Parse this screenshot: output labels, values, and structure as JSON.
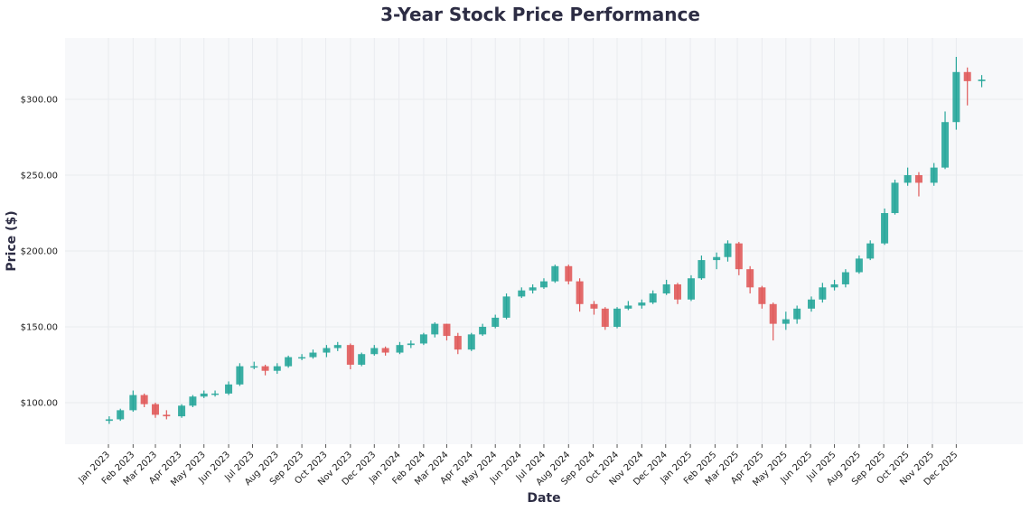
{
  "chart_data": {
    "type": "candlestick",
    "title": "3-Year Stock Price Performance",
    "xlabel": "Date",
    "ylabel": "Price ($)",
    "ylim": [
      72.6,
      340.5
    ],
    "yticks": [
      "$100.00",
      "$150.00",
      "$200.00",
      "$250.00",
      "$300.00"
    ],
    "ytick_values": [
      100,
      150,
      200,
      250,
      300
    ],
    "xticks": [
      "Jan 2023",
      "Feb 2023",
      "Mar 2023",
      "Apr 2023",
      "May 2023",
      "Jun 2023",
      "Jul 2023",
      "Aug 2023",
      "Sep 2023",
      "Oct 2023",
      "Nov 2023",
      "Dec 2023",
      "Jan 2024",
      "Feb 2024",
      "Mar 2024",
      "Apr 2024",
      "May 2024",
      "Jun 2024",
      "Jul 2024",
      "Aug 2024",
      "Sep 2024",
      "Oct 2024",
      "Nov 2024",
      "Dec 2024",
      "Jan 2025",
      "Feb 2025",
      "Mar 2025",
      "Apr 2025",
      "May 2025",
      "Jun 2025",
      "Jul 2025",
      "Aug 2025",
      "Sep 2025",
      "Oct 2025",
      "Nov 2025",
      "Dec 2025"
    ],
    "grid": true,
    "colors": {
      "up": "#26a69a",
      "down": "#e05a5a",
      "background": "#f7f8fa",
      "grid": "#e9ebef"
    },
    "columns": [
      "date",
      "open",
      "high",
      "low",
      "close"
    ],
    "ohlc": [
      [
        "2023-01-02",
        88,
        91,
        86,
        89
      ],
      [
        "2023-01-16",
        89,
        96,
        88,
        95
      ],
      [
        "2023-02-01",
        95,
        108,
        94,
        105
      ],
      [
        "2023-02-15",
        105,
        106,
        97,
        99
      ],
      [
        "2023-03-01",
        99,
        100,
        90,
        92
      ],
      [
        "2023-03-15",
        92,
        95,
        89,
        91
      ],
      [
        "2023-04-03",
        91,
        99,
        90,
        98
      ],
      [
        "2023-04-17",
        98,
        105,
        97,
        104
      ],
      [
        "2023-05-01",
        104,
        108,
        103,
        106
      ],
      [
        "2023-05-15",
        106,
        108,
        104,
        106
      ],
      [
        "2023-06-01",
        106,
        114,
        105,
        112
      ],
      [
        "2023-06-15",
        112,
        126,
        111,
        124
      ],
      [
        "2023-07-03",
        124,
        127,
        122,
        124
      ],
      [
        "2023-07-17",
        124,
        125,
        118,
        121
      ],
      [
        "2023-08-01",
        121,
        126,
        119,
        124
      ],
      [
        "2023-08-15",
        124,
        131,
        123,
        130
      ],
      [
        "2023-09-01",
        130,
        132,
        128,
        130
      ],
      [
        "2023-09-15",
        130,
        135,
        129,
        133
      ],
      [
        "2023-10-02",
        133,
        138,
        130,
        136
      ],
      [
        "2023-10-16",
        136,
        140,
        134,
        138
      ],
      [
        "2023-11-01",
        138,
        139,
        122,
        125
      ],
      [
        "2023-11-15",
        125,
        133,
        124,
        132
      ],
      [
        "2023-12-01",
        132,
        138,
        131,
        136
      ],
      [
        "2023-12-15",
        136,
        137,
        131,
        133
      ],
      [
        "2024-01-02",
        133,
        140,
        132,
        138
      ],
      [
        "2024-01-16",
        138,
        141,
        136,
        139
      ],
      [
        "2024-02-01",
        139,
        146,
        138,
        145
      ],
      [
        "2024-02-15",
        145,
        153,
        143,
        152
      ],
      [
        "2024-03-01",
        152,
        152,
        141,
        144
      ],
      [
        "2024-03-15",
        144,
        146,
        132,
        135
      ],
      [
        "2024-04-01",
        135,
        146,
        134,
        145
      ],
      [
        "2024-04-15",
        145,
        152,
        144,
        150
      ],
      [
        "2024-05-01",
        150,
        158,
        149,
        156
      ],
      [
        "2024-05-15",
        156,
        172,
        155,
        170
      ],
      [
        "2024-06-03",
        170,
        176,
        169,
        174
      ],
      [
        "2024-06-17",
        174,
        178,
        172,
        176
      ],
      [
        "2024-07-01",
        176,
        182,
        175,
        180
      ],
      [
        "2024-07-15",
        180,
        191,
        179,
        190
      ],
      [
        "2024-08-01",
        190,
        191,
        178,
        180
      ],
      [
        "2024-08-15",
        180,
        182,
        160,
        165
      ],
      [
        "2024-09-02",
        165,
        167,
        158,
        162
      ],
      [
        "2024-09-16",
        162,
        163,
        148,
        150
      ],
      [
        "2024-10-01",
        150,
        163,
        149,
        162
      ],
      [
        "2024-10-15",
        162,
        167,
        161,
        164
      ],
      [
        "2024-11-01",
        164,
        168,
        162,
        166
      ],
      [
        "2024-11-15",
        166,
        174,
        165,
        172
      ],
      [
        "2024-12-02",
        172,
        181,
        171,
        178
      ],
      [
        "2024-12-16",
        178,
        179,
        165,
        168
      ],
      [
        "2025-01-02",
        168,
        184,
        167,
        182
      ],
      [
        "2025-01-15",
        182,
        197,
        181,
        194
      ],
      [
        "2025-02-03",
        194,
        199,
        188,
        196
      ],
      [
        "2025-02-17",
        196,
        207,
        193,
        205
      ],
      [
        "2025-03-03",
        205,
        206,
        184,
        188
      ],
      [
        "2025-03-17",
        188,
        190,
        172,
        176
      ],
      [
        "2025-04-01",
        176,
        177,
        162,
        165
      ],
      [
        "2025-04-15",
        165,
        166,
        141,
        152
      ],
      [
        "2025-05-01",
        152,
        160,
        148,
        155
      ],
      [
        "2025-05-15",
        155,
        164,
        152,
        162
      ],
      [
        "2025-06-02",
        162,
        170,
        160,
        168
      ],
      [
        "2025-06-16",
        168,
        179,
        166,
        176
      ],
      [
        "2025-07-01",
        176,
        181,
        174,
        178
      ],
      [
        "2025-07-15",
        178,
        188,
        176,
        186
      ],
      [
        "2025-08-01",
        186,
        197,
        185,
        195
      ],
      [
        "2025-08-15",
        195,
        207,
        194,
        205
      ],
      [
        "2025-09-02",
        205,
        228,
        204,
        225
      ],
      [
        "2025-09-15",
        225,
        247,
        224,
        245
      ],
      [
        "2025-10-01",
        245,
        255,
        243,
        250
      ],
      [
        "2025-10-15",
        250,
        252,
        236,
        245
      ],
      [
        "2025-11-03",
        245,
        258,
        243,
        255
      ],
      [
        "2025-11-17",
        255,
        292,
        254,
        285
      ],
      [
        "2025-12-01",
        285,
        328,
        280,
        318
      ],
      [
        "2025-12-15",
        318,
        321,
        296,
        312
      ],
      [
        "2026-01-02",
        312,
        316,
        308,
        313
      ]
    ]
  }
}
